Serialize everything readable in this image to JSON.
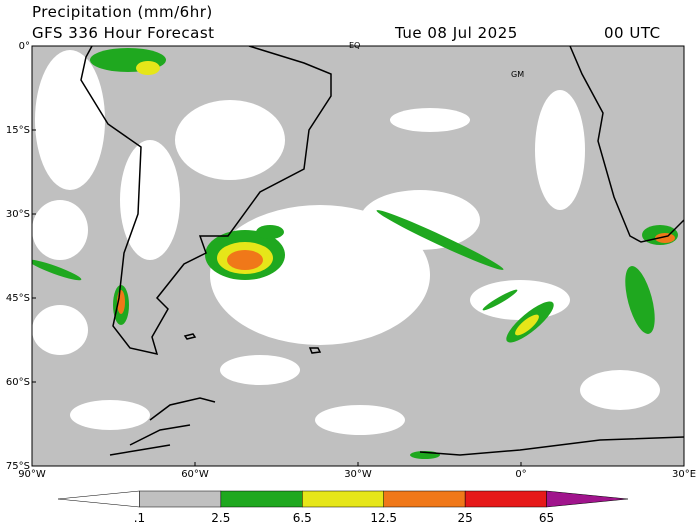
{
  "header": {
    "title": "Precipitation (mm/6hr)",
    "subtitle": "GFS 336 Hour Forecast",
    "date": "Tue 08 Jul 2025",
    "time": "00 UTC"
  },
  "map": {
    "lat_labels": [
      "0°",
      "15°S",
      "30°S",
      "45°S",
      "60°S",
      "75°S"
    ],
    "lon_labels": [
      "90°W",
      "60°W",
      "30°W",
      "0°",
      "30°E"
    ],
    "annotations": [
      "EQ",
      "GM"
    ]
  },
  "legend": {
    "labels": [
      ".1",
      "2.5",
      "6.5",
      "12.5",
      "25",
      "65"
    ],
    "colors": [
      "#ffffff",
      "#c0c0c0",
      "#1fa81f",
      "#e6e619",
      "#f07819",
      "#e61919",
      "#a0148c"
    ]
  }
}
